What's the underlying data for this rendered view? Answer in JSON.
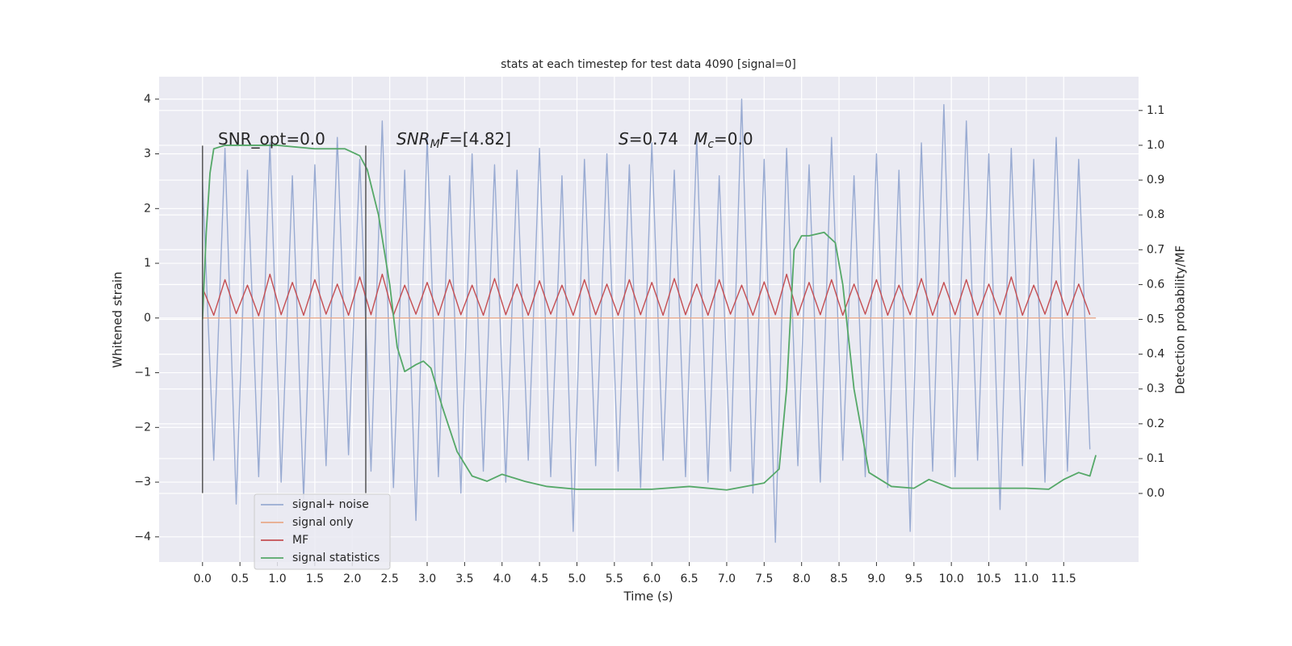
{
  "chart_data": {
    "type": "line",
    "title": "stats at each timestep for test data 4090 [signal=0]",
    "xlabel": "Time (s)",
    "ylabel": "Whitened strain",
    "y2label": "Detection probability/MF",
    "xlim": [
      -0.58,
      12.5
    ],
    "ylim": [
      -4.46,
      4.41
    ],
    "y2lim": [
      -0.197,
      1.197
    ],
    "xticks": [
      {
        "value": 0,
        "label": "0.0"
      },
      0.5,
      {
        "value": 1,
        "label": "1.0"
      },
      1.5,
      {
        "value": 2,
        "label": "2.0"
      },
      2.5,
      {
        "value": 3,
        "label": "3.0"
      },
      3.5,
      {
        "value": 4,
        "label": "4.0"
      },
      4.5,
      {
        "value": 5,
        "label": "5.0"
      },
      5.5,
      {
        "value": 6,
        "label": "6.0"
      },
      6.5,
      {
        "value": 7,
        "label": "7.0"
      },
      7.5,
      {
        "value": 8,
        "label": "8.0"
      },
      8.5,
      {
        "value": 9,
        "label": "9.0"
      },
      9.5,
      {
        "value": 10,
        "label": "10.0"
      },
      10.5,
      {
        "value": 11,
        "label": "11.0"
      },
      11.5
    ],
    "yticks": [
      {
        "value": -4,
        "label": "−4"
      },
      {
        "value": -3,
        "label": "−3"
      },
      {
        "value": -2,
        "label": "−2"
      },
      {
        "value": -1,
        "label": "−1"
      },
      0,
      1,
      2,
      3,
      4
    ],
    "y2ticks": [
      {
        "value": 0,
        "label": "0.0"
      },
      0.1,
      0.2,
      0.3,
      0.4,
      0.5,
      0.6,
      0.7,
      0.8,
      0.9,
      {
        "value": 1,
        "label": "1.0"
      },
      1.1
    ],
    "grid": true,
    "legend": "lower left",
    "annotations": [
      [
        {
          "text": "SNR_opt=0.0"
        }
      ],
      [
        {
          "text": "SNR",
          "italic": true
        },
        {
          "text": "M",
          "sub": true,
          "italic": true
        },
        {
          "text": "F",
          "italic": true
        },
        {
          "text": "=[4.82]"
        }
      ],
      [
        {
          "text": "S",
          "italic": true
        },
        {
          "text": "=0.74   "
        },
        {
          "text": "M",
          "italic": true
        },
        {
          "text": "c",
          "sub": true,
          "italic": true
        },
        {
          "text": "=0.0"
        }
      ]
    ],
    "vlines": [
      {
        "x": 0,
        "ymin": -3.2,
        "ymax": 3.15,
        "color": "#555555"
      },
      {
        "x": 2.18,
        "ymin": -3.2,
        "ymax": 3.15,
        "color": "#555555"
      }
    ],
    "series": [
      {
        "name": "signal+ noise",
        "color": "#99abd2",
        "x": [
          0,
          0.15,
          0.3,
          0.45,
          0.6,
          0.75,
          0.9,
          1.05,
          1.2,
          1.35,
          1.5,
          1.65,
          1.8,
          1.95,
          2.1,
          2.25,
          2.4,
          2.55,
          2.7,
          2.85,
          3,
          3.15,
          3.3,
          3.45,
          3.6,
          3.75,
          3.9,
          4.05,
          4.2,
          4.35,
          4.5,
          4.65,
          4.8,
          4.95,
          5.1,
          5.25,
          5.4,
          5.55,
          5.7,
          5.85,
          6,
          6.15,
          6.3,
          6.45,
          6.6,
          6.75,
          6.9,
          7.05,
          7.2,
          7.35,
          7.5,
          7.65,
          7.8,
          7.95,
          8.1,
          8.25,
          8.4,
          8.55,
          8.7,
          8.85,
          9,
          9.15,
          9.3,
          9.45,
          9.6,
          9.75,
          9.9,
          10.05,
          10.2,
          10.35,
          10.5,
          10.65,
          10.8,
          10.95,
          11.1,
          11.25,
          11.4,
          11.55,
          11.7,
          11.85
        ],
        "values": [
          2.5,
          -2.6,
          3.1,
          -3.4,
          2.7,
          -2.9,
          3.2,
          -3.0,
          2.6,
          -3.3,
          2.8,
          -2.7,
          3.3,
          -2.5,
          2.9,
          -2.8,
          3.6,
          -3.1,
          2.7,
          -3.7,
          3.3,
          -2.9,
          2.6,
          -3.2,
          3.0,
          -2.8,
          2.8,
          -3.0,
          2.7,
          -2.6,
          3.1,
          -2.9,
          2.6,
          -3.9,
          2.9,
          -2.7,
          3.0,
          -2.8,
          2.8,
          -3.1,
          3.2,
          -2.6,
          2.7,
          -2.9,
          3.3,
          -3.0,
          2.6,
          -2.8,
          4.0,
          -3.2,
          2.9,
          -4.1,
          3.1,
          -2.7,
          2.8,
          -3.0,
          3.3,
          -2.6,
          2.6,
          -2.9,
          3.0,
          -3.1,
          2.7,
          -3.9,
          3.2,
          -2.8,
          3.9,
          -2.9,
          3.6,
          -2.6,
          3.0,
          -3.5,
          3.1,
          -2.7,
          2.9,
          -3.0,
          3.3,
          -2.8,
          2.9,
          -2.4
        ]
      },
      {
        "name": "signal only",
        "color": "#e8a98a",
        "x": [
          0,
          11.93
        ],
        "values": [
          0,
          0
        ]
      },
      {
        "name": "MF",
        "color": "#c44e52",
        "x": [
          0,
          0.15,
          0.3,
          0.45,
          0.6,
          0.75,
          0.9,
          1.05,
          1.2,
          1.35,
          1.5,
          1.65,
          1.8,
          1.95,
          2.1,
          2.25,
          2.4,
          2.55,
          2.7,
          2.85,
          3,
          3.15,
          3.3,
          3.45,
          3.6,
          3.75,
          3.9,
          4.05,
          4.2,
          4.35,
          4.5,
          4.65,
          4.8,
          4.95,
          5.1,
          5.25,
          5.4,
          5.55,
          5.7,
          5.85,
          6,
          6.15,
          6.3,
          6.45,
          6.6,
          6.75,
          6.9,
          7.05,
          7.2,
          7.35,
          7.5,
          7.65,
          7.8,
          7.95,
          8.1,
          8.25,
          8.4,
          8.55,
          8.7,
          8.85,
          9,
          9.15,
          9.3,
          9.45,
          9.6,
          9.75,
          9.9,
          10.05,
          10.2,
          10.35,
          10.5,
          10.65,
          10.8,
          10.95,
          11.1,
          11.25,
          11.4,
          11.55,
          11.7,
          11.85
        ],
        "values": [
          0.55,
          0.05,
          0.7,
          0.08,
          0.6,
          0.04,
          0.8,
          0.06,
          0.65,
          0.05,
          0.7,
          0.07,
          0.62,
          0.05,
          0.75,
          0.06,
          0.8,
          0.05,
          0.6,
          0.07,
          0.65,
          0.05,
          0.7,
          0.06,
          0.6,
          0.05,
          0.72,
          0.06,
          0.62,
          0.05,
          0.68,
          0.07,
          0.6,
          0.05,
          0.7,
          0.06,
          0.62,
          0.05,
          0.7,
          0.06,
          0.65,
          0.05,
          0.72,
          0.06,
          0.62,
          0.05,
          0.7,
          0.07,
          0.6,
          0.05,
          0.66,
          0.06,
          0.8,
          0.05,
          0.65,
          0.06,
          0.7,
          0.05,
          0.62,
          0.07,
          0.7,
          0.05,
          0.6,
          0.06,
          0.72,
          0.05,
          0.65,
          0.06,
          0.7,
          0.05,
          0.62,
          0.06,
          0.75,
          0.05,
          0.6,
          0.07,
          0.68,
          0.05,
          0.62,
          0.06
        ]
      },
      {
        "name": "signal statistics",
        "color": "#55a868",
        "axis": "y2",
        "x": [
          0,
          0.05,
          0.1,
          0.15,
          0.3,
          0.6,
          1.0,
          1.5,
          1.9,
          2.1,
          2.2,
          2.35,
          2.5,
          2.6,
          2.7,
          2.85,
          2.95,
          3.05,
          3.2,
          3.4,
          3.6,
          3.8,
          4.0,
          4.3,
          4.6,
          5.0,
          5.5,
          6.0,
          6.5,
          7.0,
          7.5,
          7.7,
          7.8,
          7.9,
          8.0,
          8.1,
          8.3,
          8.45,
          8.55,
          8.7,
          8.9,
          9.2,
          9.5,
          9.7,
          10.0,
          10.5,
          11.0,
          11.3,
          11.5,
          11.7,
          11.85,
          11.93
        ],
        "values": [
          0.5,
          0.75,
          0.92,
          0.99,
          1.0,
          1.0,
          1.0,
          0.99,
          0.99,
          0.97,
          0.93,
          0.8,
          0.6,
          0.42,
          0.35,
          0.37,
          0.38,
          0.36,
          0.25,
          0.12,
          0.05,
          0.035,
          0.055,
          0.035,
          0.02,
          0.012,
          0.012,
          0.012,
          0.02,
          0.01,
          0.03,
          0.07,
          0.3,
          0.7,
          0.74,
          0.74,
          0.75,
          0.72,
          0.6,
          0.3,
          0.06,
          0.02,
          0.015,
          0.04,
          0.015,
          0.015,
          0.015,
          0.012,
          0.04,
          0.06,
          0.05,
          0.11
        ]
      }
    ]
  }
}
